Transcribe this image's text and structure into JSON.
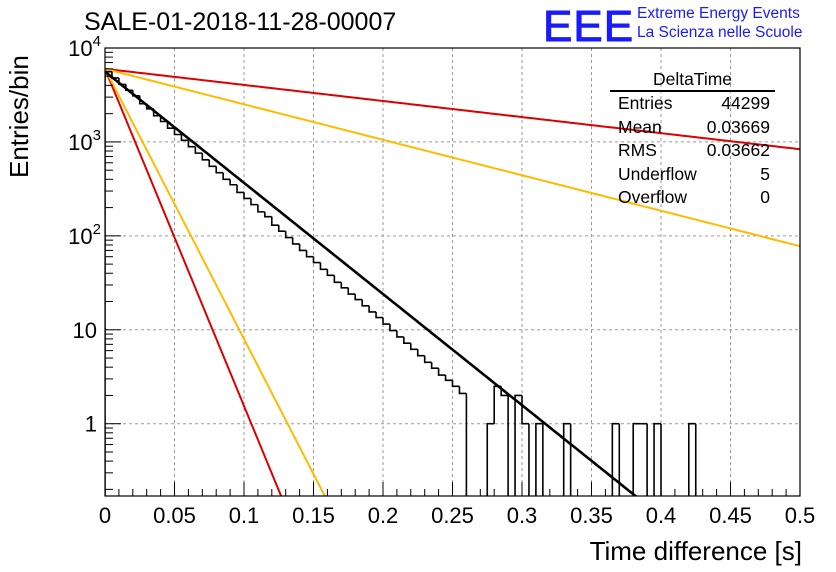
{
  "title": "SALE-01-2018-11-28-00007",
  "logo": {
    "mark": "EEE",
    "line1": "Extreme Energy Events",
    "line2": "La Scienza nelle Scuole"
  },
  "stats": {
    "title": "DeltaTime",
    "rows": [
      {
        "label": "Entries",
        "value": "44299"
      },
      {
        "label": "Mean",
        "value": "0.03669"
      },
      {
        "label": "RMS",
        "value": "0.03662"
      },
      {
        "label": "Underflow",
        "value": "5"
      },
      {
        "label": "Overflow",
        "value": "0"
      }
    ]
  },
  "chart_data": {
    "type": "line",
    "title": "SALE-01-2018-11-28-00007",
    "xlabel": "Time difference [s]",
    "ylabel": "Entries/bin",
    "xlim": [
      0,
      0.5
    ],
    "ylim": [
      0.17,
      10000
    ],
    "log_y": true,
    "grid": true,
    "x_ticks": [
      "0",
      "0.05",
      "0.1",
      "0.15",
      "0.2",
      "0.25",
      "0.3",
      "0.35",
      "0.4",
      "0.45",
      "0.5"
    ],
    "y_ticks": [
      {
        "value": 1,
        "label": "1"
      },
      {
        "value": 10,
        "label": "10"
      },
      {
        "value": 100,
        "label": "10",
        "exp": "2"
      },
      {
        "value": 1000,
        "label": "10",
        "exp": "3"
      },
      {
        "value": 10000,
        "label": "10",
        "exp": "4"
      }
    ],
    "histogram": {
      "bin_width": 0.005,
      "color": "#000000",
      "counts": [
        5600,
        4800,
        4100,
        3550,
        3100,
        2550,
        2250,
        1900,
        1650,
        1400,
        1200,
        1040,
        890,
        760,
        645,
        550,
        470,
        400,
        350,
        290,
        250,
        215,
        180,
        160,
        130,
        112,
        96,
        82,
        70,
        60,
        52,
        44,
        38,
        32,
        28,
        24,
        21,
        18,
        15.5,
        13.5,
        11.5,
        9.8,
        8.4,
        7.2,
        6.2,
        5.3,
        4.5,
        3.9,
        3.3,
        2.9,
        2.5,
        2.1,
        0,
        0,
        0,
        1,
        2.5,
        2,
        0,
        2,
        1,
        0,
        1,
        0,
        0,
        0,
        1,
        0,
        0,
        0,
        0,
        0,
        0,
        1,
        0,
        0,
        1,
        1,
        0,
        1,
        0,
        0,
        0,
        0,
        1,
        0,
        0,
        0,
        0,
        0,
        0,
        0,
        0,
        0,
        0,
        0,
        0,
        0,
        0,
        0
      ]
    },
    "series": [
      {
        "color": "#000000",
        "y0": 5600,
        "tau": 0.03669
      },
      {
        "color": "#dd0000",
        "y0": 6000,
        "tau": 0.0121
      },
      {
        "color": "#ffbb00",
        "y0": 6000,
        "tau": 0.0151
      },
      {
        "color": "#dd0000",
        "y0": 6000,
        "tau": 0.2537
      },
      {
        "color": "#ffbb00",
        "y0": 6000,
        "tau": 0.115
      }
    ]
  }
}
